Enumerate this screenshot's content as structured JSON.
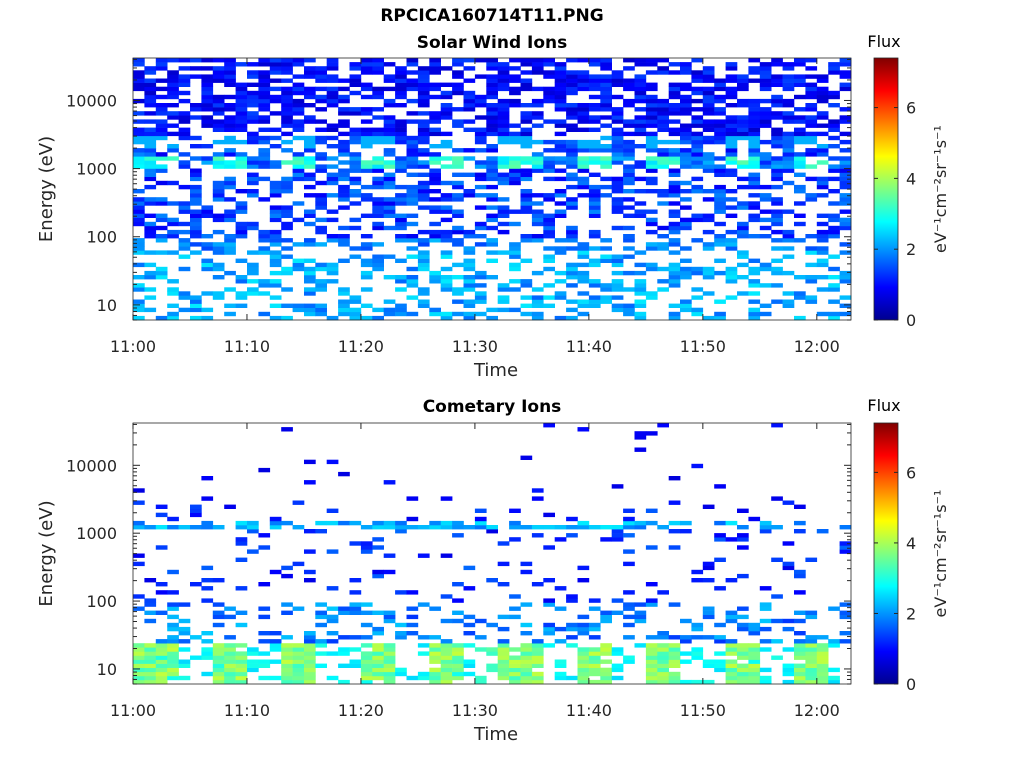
{
  "figure_title": "RPCICA160714T11.PNG",
  "colormap": [
    "#00008f",
    "#0000ff",
    "#0080ff",
    "#00ffff",
    "#80ff80",
    "#ffff00",
    "#ff8000",
    "#ff0000",
    "#800000"
  ],
  "chart_data": [
    {
      "type": "heatmap",
      "title": "Solar Wind Ions",
      "xlabel": "Time",
      "ylabel": "Energy (eV)",
      "y_scale": "log",
      "xlim": [
        660,
        723
      ],
      "ylim": [
        6,
        42000
      ],
      "x_ticks": [
        660,
        670,
        680,
        690,
        700,
        710,
        720
      ],
      "x_tick_labels": [
        "11:00",
        "11:10",
        "11:20",
        "11:30",
        "11:40",
        "11:50",
        "12:00"
      ],
      "y_ticks": [
        10,
        100,
        1000,
        10000
      ],
      "y_tick_labels": [
        "10",
        "100",
        "1000",
        "10000"
      ],
      "colorbar": {
        "label": "Flux",
        "unit": "eV⁻¹cm⁻²sr⁻¹s⁻¹",
        "range": [
          0,
          7.4
        ],
        "ticks": [
          0,
          2,
          4,
          6
        ],
        "tick_labels": [
          "0",
          "2",
          "4",
          "6"
        ]
      },
      "seed": 17,
      "features": {
        "dense_dark_band_ev": [
          2500,
          40000
        ],
        "peak_band_ev": [
          1000,
          1500
        ],
        "peak_flux": 3.0,
        "low_energy_band_ev": [
          6,
          60
        ],
        "low_energy_flux": 2.2
      }
    },
    {
      "type": "heatmap",
      "title": "Cometary Ions",
      "xlabel": "Time",
      "ylabel": "Energy (eV)",
      "y_scale": "log",
      "xlim": [
        660,
        723
      ],
      "ylim": [
        6,
        42000
      ],
      "x_ticks": [
        660,
        670,
        680,
        690,
        700,
        710,
        720
      ],
      "x_tick_labels": [
        "11:00",
        "11:10",
        "11:20",
        "11:30",
        "11:40",
        "11:50",
        "12:00"
      ],
      "y_ticks": [
        10,
        100,
        1000,
        10000
      ],
      "y_tick_labels": [
        "10",
        "100",
        "1000",
        "10000"
      ],
      "colorbar": {
        "label": "Flux",
        "unit": "eV⁻¹cm⁻²sr⁻¹s⁻¹",
        "range": [
          0,
          7.4
        ],
        "ticks": [
          0,
          2,
          4,
          6
        ],
        "tick_labels": [
          "0",
          "2",
          "4",
          "6"
        ]
      },
      "seed": 91,
      "features": {
        "sparse_high_energy": true,
        "line_1200ev_flux": 2.4,
        "low_energy_band_ev": [
          6,
          25
        ],
        "low_energy_flux": 4.0,
        "max_flux_near_1130": 4.6
      }
    }
  ]
}
